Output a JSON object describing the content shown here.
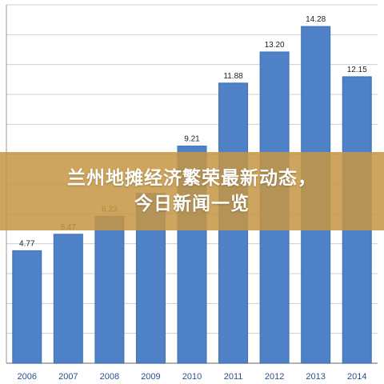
{
  "banner": {
    "line1": "兰州地摊经济繁荣最新动态，",
    "line2": "今日新闻一览"
  },
  "chart_data": {
    "type": "bar",
    "categories": [
      "2006",
      "2007",
      "2008",
      "2009",
      "2010",
      "2011",
      "2012",
      "2013",
      "2014"
    ],
    "values": [
      4.77,
      5.47,
      6.23,
      7.2,
      9.21,
      11.88,
      13.2,
      14.28,
      12.15
    ],
    "value_labels": [
      "4.77",
      "5.47",
      "6.23",
      "",
      "9.21",
      "11.88",
      "13.20",
      "14.28",
      "12.15"
    ],
    "ylim": [
      0,
      15.2
    ],
    "grid": true,
    "colors": {
      "bar": "#4f81c7",
      "bar_edge": "#3f6fb4",
      "grid": "#cfcfcf",
      "axis": "#999999",
      "tick_label": "#2e4f8a",
      "value_label": "#222222"
    }
  }
}
